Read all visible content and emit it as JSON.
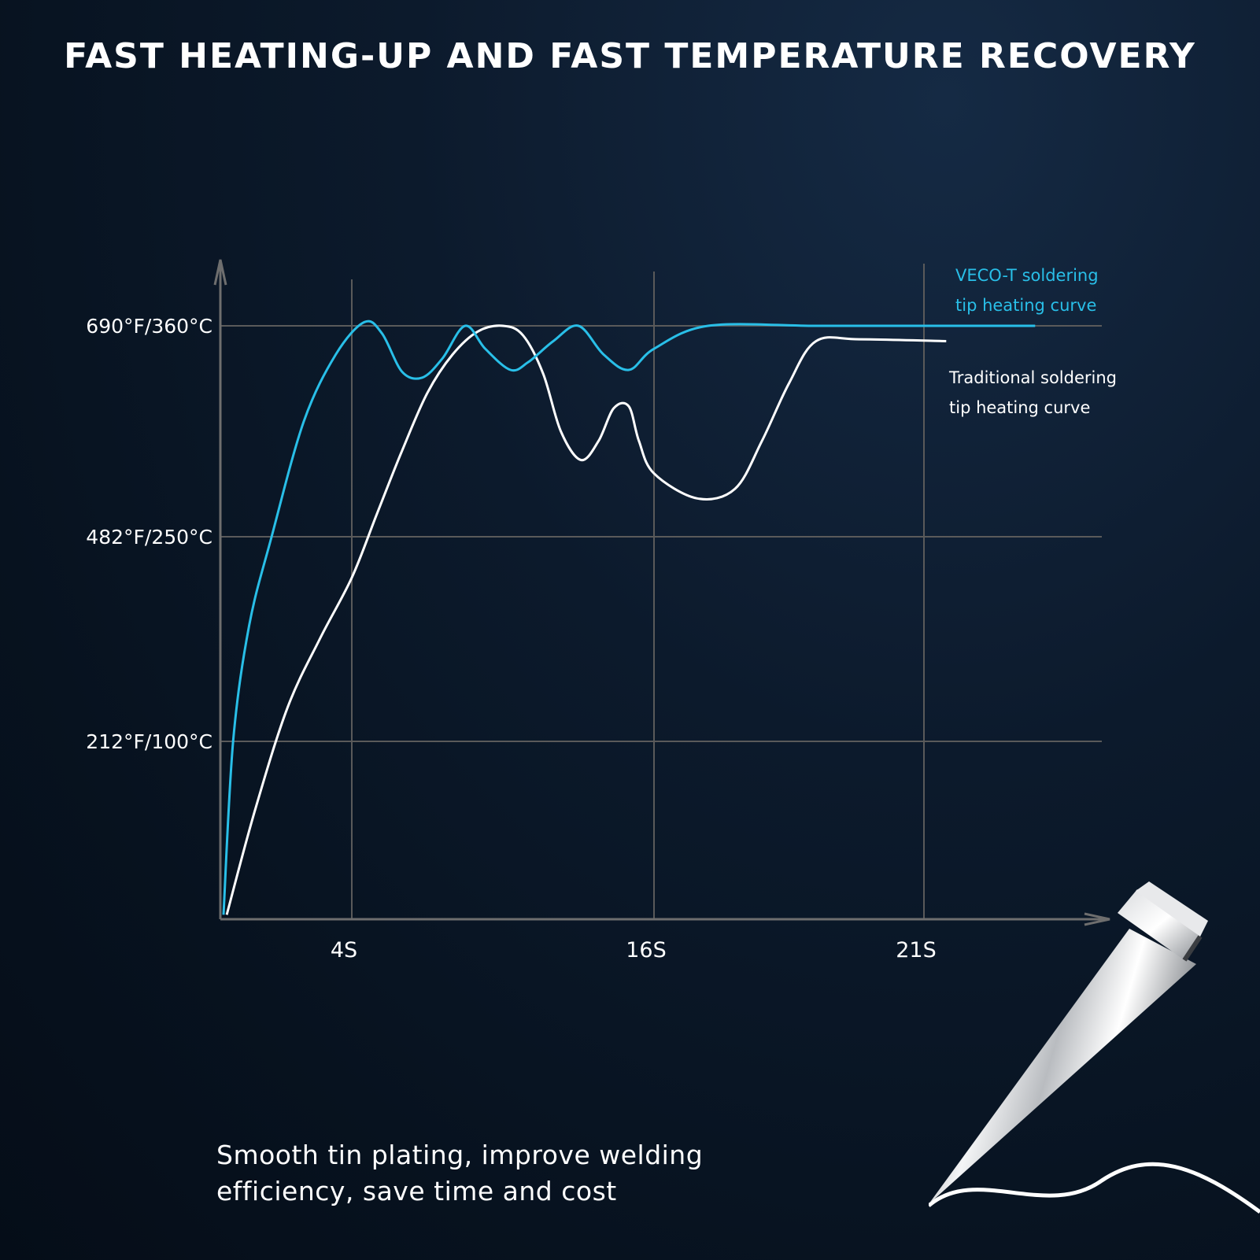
{
  "title": "FAST HEATING-UP AND FAST TEMPERATURE RECOVERY",
  "caption": {
    "line1": "Smooth tin plating, improve welding",
    "line2": "efficiency, save time and cost"
  },
  "colors": {
    "veco": "#29bfe8",
    "traditional": "#ffffff",
    "grid": "#5a5a5a",
    "axis": "#6e6e6e"
  },
  "chart_data": {
    "type": "line",
    "title": "FAST HEATING-UP AND FAST TEMPERATURE RECOVERY",
    "xlabel": "",
    "ylabel": "",
    "xlim": [
      0,
      25
    ],
    "ylim": [
      20,
      385
    ],
    "grid": true,
    "x_ticks": [
      {
        "value": 4,
        "label": "4S"
      },
      {
        "value": 16,
        "label": "16S"
      },
      {
        "value": 21,
        "label": "21S"
      }
    ],
    "y_ticks": [
      {
        "value": 100,
        "label": "212°F/100°C"
      },
      {
        "value": 250,
        "label": "482°F/250°C"
      },
      {
        "value": 360,
        "label": "690°F/360°C"
      }
    ],
    "legend": [
      {
        "series": "veco",
        "lines": [
          "VECO-T soldering",
          "tip heating curve"
        ],
        "position": "top-right"
      },
      {
        "series": "traditional",
        "lines": [
          "Traditional soldering",
          "tip heating curve"
        ],
        "position": "right"
      }
    ],
    "series": [
      {
        "name": "VECO-T soldering tip heating curve",
        "key": "veco",
        "points": [
          [
            0,
            22
          ],
          [
            0.3,
            100
          ],
          [
            0.8,
            185
          ],
          [
            1.5,
            250
          ],
          [
            2.5,
            310
          ],
          [
            3.5,
            345
          ],
          [
            4.5,
            362
          ],
          [
            5.2,
            356
          ],
          [
            6.0,
            336
          ],
          [
            6.8,
            333
          ],
          [
            7.6,
            343
          ],
          [
            8.5,
            360
          ],
          [
            9.3,
            348
          ],
          [
            10.3,
            337
          ],
          [
            11.0,
            341
          ],
          [
            12.0,
            352
          ],
          [
            13.0,
            360
          ],
          [
            14.0,
            345
          ],
          [
            15.0,
            337
          ],
          [
            16.0,
            348
          ],
          [
            17.0,
            360
          ],
          [
            19.0,
            360
          ],
          [
            21.0,
            360
          ],
          [
            23.5,
            360
          ]
        ]
      },
      {
        "name": "Traditional soldering tip heating curve",
        "key": "traditional",
        "points": [
          [
            0.1,
            22
          ],
          [
            1.0,
            70
          ],
          [
            2.0,
            125
          ],
          [
            3.0,
            175
          ],
          [
            4.0,
            220
          ],
          [
            5.0,
            262
          ],
          [
            6.0,
            295
          ],
          [
            7.0,
            325
          ],
          [
            8.0,
            345
          ],
          [
            9.0,
            357
          ],
          [
            10.0,
            360
          ],
          [
            10.8,
            355
          ],
          [
            11.6,
            335
          ],
          [
            12.3,
            305
          ],
          [
            13.1,
            290
          ],
          [
            13.8,
            300
          ],
          [
            14.4,
            317
          ],
          [
            15.0,
            318
          ],
          [
            15.4,
            300
          ],
          [
            16.0,
            283
          ],
          [
            16.8,
            270
          ],
          [
            17.5,
            275
          ],
          [
            18.0,
            300
          ],
          [
            18.5,
            330
          ],
          [
            19.0,
            352
          ],
          [
            19.8,
            353
          ],
          [
            21.5,
            352
          ]
        ]
      }
    ]
  }
}
